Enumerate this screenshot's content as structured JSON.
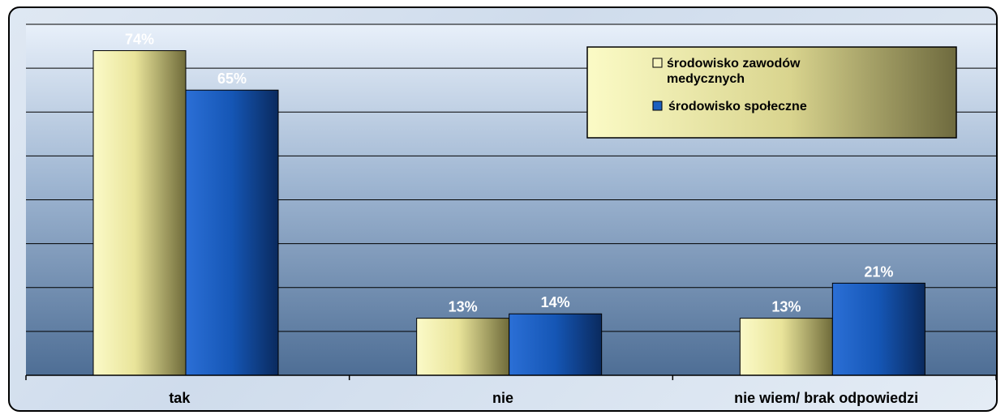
{
  "chart_data": {
    "type": "bar",
    "categories": [
      "tak",
      "nie",
      "nie wiem/ brak odpowiedzi"
    ],
    "series": [
      {
        "name": "środowisko zawodów medycznych",
        "values": [
          74,
          13,
          13
        ],
        "color": "#f2f0a8"
      },
      {
        "name": "środowisko społeczne",
        "values": [
          65,
          14,
          21
        ],
        "color": "#1b5fbf"
      }
    ],
    "data_labels": [
      [
        "74%",
        "13%",
        "13%"
      ],
      [
        "65%",
        "14%",
        "21%"
      ]
    ],
    "ylim": [
      0,
      80
    ],
    "grid": true,
    "legend_position": "top-right"
  },
  "legend": {
    "entries": [
      {
        "line1": "środowisko zawodów",
        "line2": "medycznych"
      },
      {
        "line1": "środowisko społeczne",
        "line2": ""
      }
    ]
  }
}
